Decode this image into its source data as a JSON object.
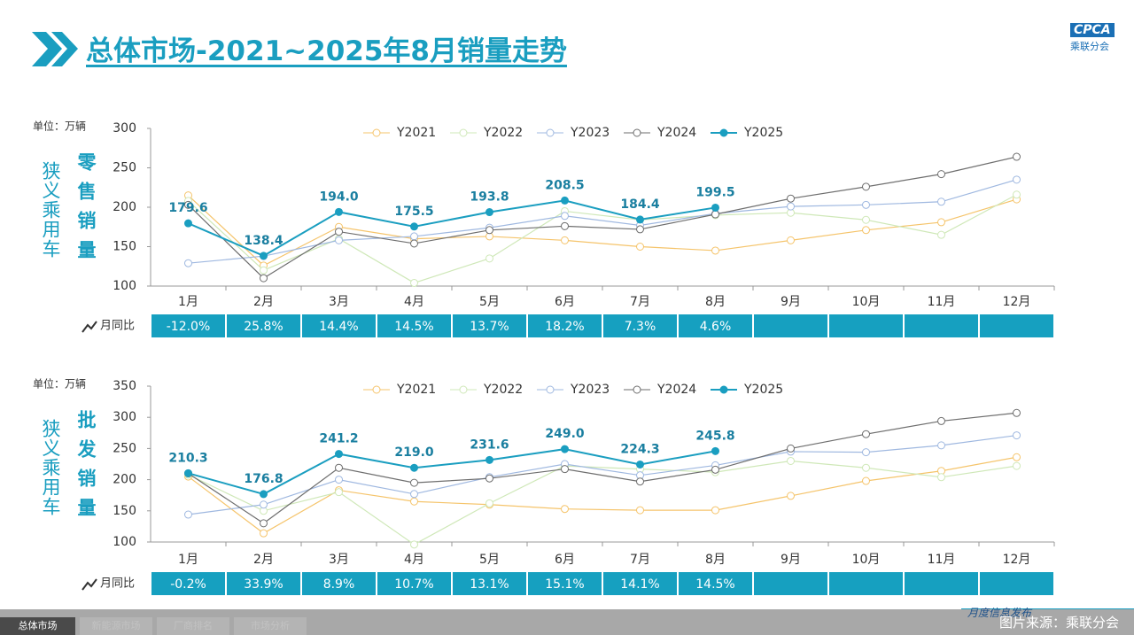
{
  "header": {
    "title": "总体市场-2021~2025年8月销量走势",
    "logo": "CPCA",
    "logo_sub": "乘联分会"
  },
  "footer": {
    "tabs": [
      "总体市场",
      "新能源市场",
      "厂商排名",
      "市场分析"
    ],
    "slogan": "月度信息发布",
    "source": "图片来源：乘联分会"
  },
  "chart_data": [
    {
      "type": "line",
      "unit": "单位：万辆",
      "side_label": "狭义乘用车",
      "metric_label": "零售销量",
      "yoy_label": "月同比",
      "categories": [
        "1月",
        "2月",
        "3月",
        "4月",
        "5月",
        "6月",
        "7月",
        "8月",
        "9月",
        "10月",
        "11月",
        "12月"
      ],
      "ylim": [
        100,
        300
      ],
      "yticks": [
        100,
        150,
        200,
        250,
        300
      ],
      "series": [
        {
          "name": "Y2021",
          "color": "#f5c46b",
          "values": [
            215,
            126,
            175,
            160,
            163,
            158,
            150,
            145,
            158,
            171,
            181,
            210
          ]
        },
        {
          "name": "Y2022",
          "color": "#cfe8b8",
          "values": [
            208,
            120,
            160,
            104,
            135,
            195,
            184,
            190,
            193,
            184,
            165,
            216
          ]
        },
        {
          "name": "Y2023",
          "color": "#9fb8e0",
          "values": [
            129,
            138,
            158,
            163,
            174,
            189,
            177,
            192,
            201,
            203,
            207,
            235
          ]
        },
        {
          "name": "Y2024",
          "color": "#6e6e6e",
          "values": [
            203,
            110,
            169,
            154,
            171,
            176,
            172,
            191,
            211,
            226,
            242,
            264
          ]
        },
        {
          "name": "Y2025",
          "color": "#1a9ec0",
          "values": [
            179.6,
            138.4,
            194.0,
            175.5,
            193.8,
            208.5,
            184.4,
            199.5,
            null,
            null,
            null,
            null
          ],
          "value_labels": [
            "179.6",
            "138.4",
            "194.0",
            "175.5",
            "193.8",
            "208.5",
            "184.4",
            "199.5",
            null,
            null,
            null,
            null
          ]
        }
      ],
      "yoy": [
        "-12.0%",
        "25.8%",
        "14.4%",
        "14.5%",
        "13.7%",
        "18.2%",
        "7.3%",
        "4.6%"
      ]
    },
    {
      "type": "line",
      "unit": "单位：万辆",
      "side_label": "狭义乘用车",
      "metric_label": "批发销量",
      "yoy_label": "月同比",
      "categories": [
        "1月",
        "2月",
        "3月",
        "4月",
        "5月",
        "6月",
        "7月",
        "8月",
        "9月",
        "10月",
        "11月",
        "12月"
      ],
      "ylim": [
        100,
        350
      ],
      "yticks": [
        100,
        150,
        200,
        250,
        300,
        350
      ],
      "series": [
        {
          "name": "Y2021",
          "color": "#f5c46b",
          "values": [
            205,
            114,
            183,
            165,
            160,
            153,
            151,
            151,
            174,
            198,
            214,
            236
          ]
        },
        {
          "name": "Y2022",
          "color": "#cfe8b8",
          "values": [
            208,
            150,
            180,
            96,
            162,
            222,
            217,
            212,
            230,
            219,
            204,
            222
          ]
        },
        {
          "name": "Y2023",
          "color": "#9fb8e0",
          "values": [
            144,
            160,
            200,
            177,
            204,
            225,
            207,
            223,
            245,
            244,
            255,
            271
          ]
        },
        {
          "name": "Y2024",
          "color": "#6e6e6e",
          "values": [
            210,
            130,
            219,
            195,
            202,
            217,
            197,
            216,
            250,
            273,
            294,
            307
          ]
        },
        {
          "name": "Y2025",
          "color": "#1a9ec0",
          "values": [
            210.3,
            176.8,
            241.2,
            219.0,
            231.6,
            249.0,
            224.3,
            245.8,
            null,
            null,
            null,
            null
          ],
          "value_labels": [
            "210.3",
            "176.8",
            "241.2",
            "219.0",
            "231.6",
            "249.0",
            "224.3",
            "245.8",
            null,
            null,
            null,
            null
          ]
        }
      ],
      "yoy": [
        "-0.2%",
        "33.9%",
        "8.9%",
        "10.7%",
        "13.1%",
        "15.1%",
        "14.1%",
        "14.5%"
      ]
    }
  ]
}
